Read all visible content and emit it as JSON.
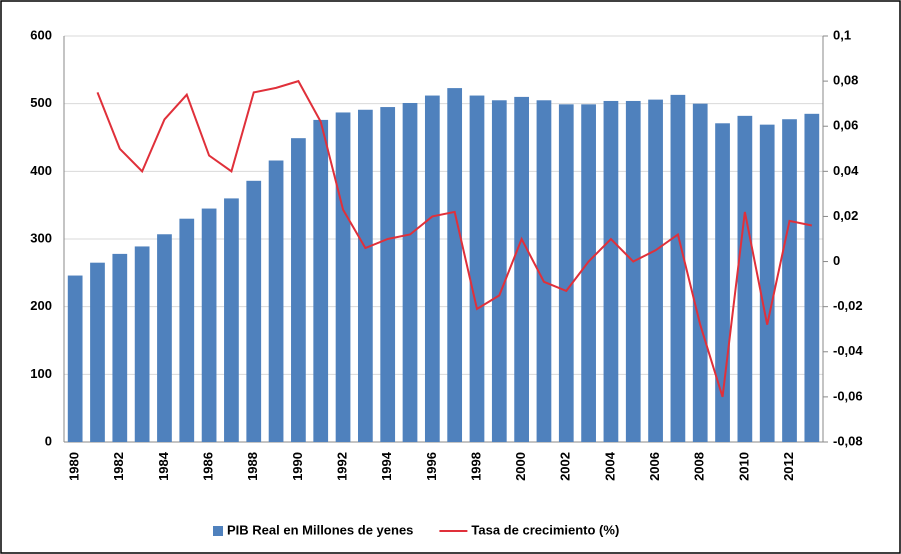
{
  "chart_data": {
    "type": "bar+line",
    "categories": [
      "1980",
      null,
      "1982",
      null,
      "1984",
      null,
      "1986",
      null,
      "1988",
      null,
      "1990",
      null,
      "1992",
      null,
      "1994",
      null,
      "1996",
      null,
      "1998",
      null,
      "2000",
      null,
      "2002",
      null,
      "2004",
      null,
      "2006",
      null,
      "2008",
      null,
      "2010",
      null,
      "2012",
      null
    ],
    "series": [
      {
        "name": "PIB Real en Millones de yenes",
        "type": "bar",
        "color": "#4f81bd",
        "values": [
          246,
          265,
          278,
          289,
          307,
          330,
          345,
          360,
          386,
          416,
          449,
          476,
          487,
          491,
          495,
          501,
          512,
          523,
          512,
          505,
          510,
          505,
          499,
          499,
          504,
          504,
          506,
          513,
          500,
          471,
          482,
          469,
          477,
          485
        ]
      },
      {
        "name": "Tasa de crecimiento (%)",
        "type": "line",
        "axis": "y2",
        "color": "#e0303a",
        "values": [
          null,
          0.075,
          0.05,
          0.04,
          0.063,
          0.074,
          0.047,
          0.04,
          0.075,
          0.077,
          0.08,
          0.062,
          0.023,
          0.006,
          0.01,
          0.012,
          0.02,
          0.022,
          -0.021,
          -0.015,
          0.01,
          -0.009,
          -0.013,
          0.0,
          0.01,
          0.0,
          0.005,
          0.012,
          -0.028,
          -0.06,
          0.022,
          -0.028,
          0.018,
          0.016
        ]
      }
    ],
    "ylim": [
      0,
      600
    ],
    "yticks": [
      0,
      100,
      200,
      300,
      400,
      500,
      600
    ],
    "y2lim": [
      -0.08,
      0.1
    ],
    "y2ticks": [
      {
        "value": -0.08,
        "label": "-0,08"
      },
      {
        "value": -0.06,
        "label": "-0,06"
      },
      {
        "value": -0.04,
        "label": "-0,04"
      },
      {
        "value": -0.02,
        "label": "-0,02"
      },
      0,
      {
        "value": 0.02,
        "label": "0,02"
      },
      {
        "value": 0.04,
        "label": "0,04"
      },
      {
        "value": 0.06,
        "label": "0,06"
      },
      {
        "value": 0.08,
        "label": "0,08"
      },
      {
        "value": 0.1,
        "label": "0,1"
      }
    ],
    "grid": true,
    "legend": "bottom"
  }
}
